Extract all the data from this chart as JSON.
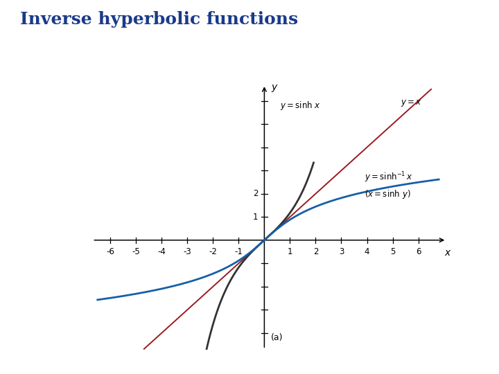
{
  "title": "Inverse hyperbolic functions",
  "title_color": "#1a3a8a",
  "title_fontsize": 18,
  "subplot_label": "(a)",
  "xlim": [
    -6.8,
    7.2
  ],
  "ylim": [
    -4.8,
    6.8
  ],
  "x_ticks_labeled": [
    -6,
    -5,
    -4,
    -3,
    -2,
    -1,
    1,
    2,
    3,
    4,
    5,
    6
  ],
  "y_ticks_labeled": [
    1,
    2
  ],
  "y_ticks_unlabeled": [
    -1,
    -2,
    -3,
    -4,
    3,
    4,
    5,
    6
  ],
  "sinh_color": "#333333",
  "arcsinh_color": "#1460a8",
  "line_color": "#9b1b20",
  "tick_size": 0.12,
  "tick_label_fontsize": 8.5
}
